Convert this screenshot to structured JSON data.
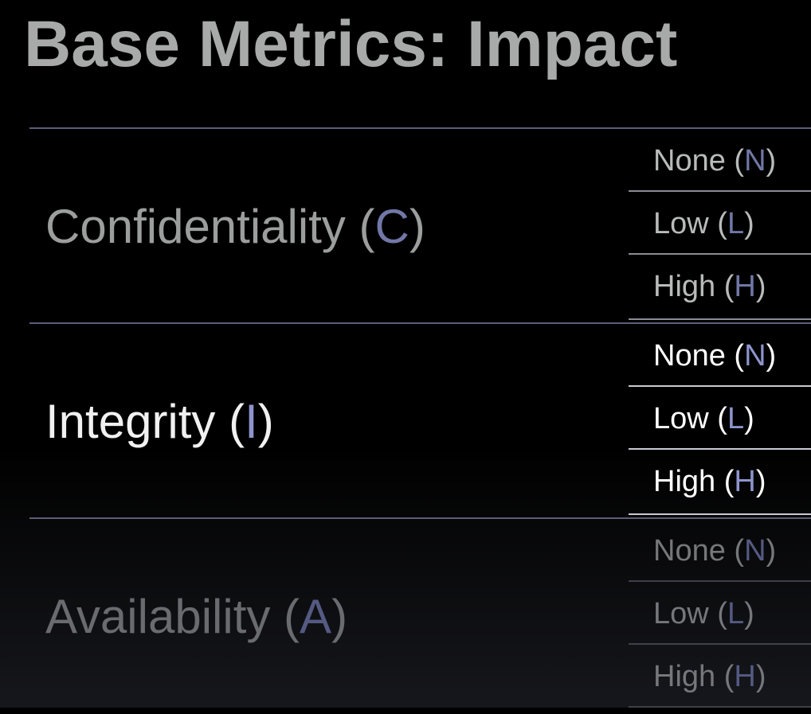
{
  "slide": {
    "title": "Base Metrics: Impact"
  },
  "metrics": [
    {
      "name": "Confidentiality",
      "abbr": "C",
      "options": [
        {
          "name": "None",
          "abbr": "N"
        },
        {
          "name": "Low",
          "abbr": "L"
        },
        {
          "name": "High",
          "abbr": "H"
        }
      ]
    },
    {
      "name": "Integrity",
      "abbr": "I",
      "options": [
        {
          "name": "None",
          "abbr": "N"
        },
        {
          "name": "Low",
          "abbr": "L"
        },
        {
          "name": "High",
          "abbr": "H"
        }
      ]
    },
    {
      "name": "Availability",
      "abbr": "A",
      "options": [
        {
          "name": "None",
          "abbr": "N"
        },
        {
          "name": "Low",
          "abbr": "L"
        },
        {
          "name": "High",
          "abbr": "H"
        }
      ]
    }
  ],
  "colors": {
    "title": "#a7aaa9",
    "divider": "#5c5e78",
    "abbr_accent": "#8e94cb",
    "active_text": "#ffffff",
    "dim_text": "#9c9e9e",
    "faded_text": "#6a6b6e"
  }
}
